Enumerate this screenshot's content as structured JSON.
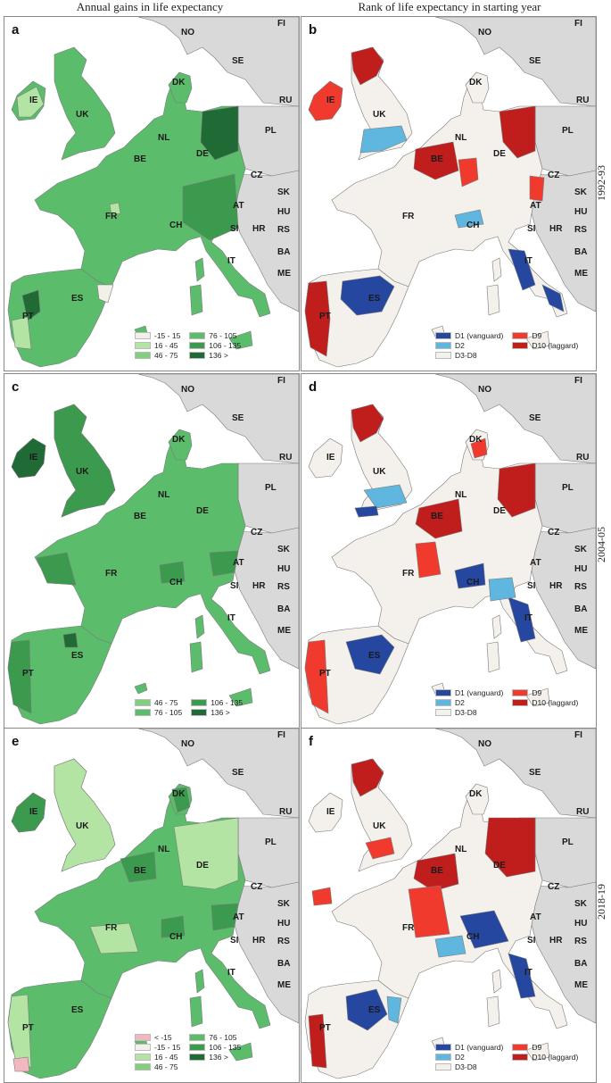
{
  "column_titles": {
    "left": "Annual gains in life expectancy",
    "right": "Rank of life expectancy in starting year"
  },
  "row_labels": [
    "1992-93",
    "2004-05",
    "2018-19"
  ],
  "panels": [
    {
      "letter": "a",
      "scheme": "gain",
      "legend": [
        {
          "label": "-15 - 15",
          "color": "#f2f0e8"
        },
        {
          "label": "16 - 45",
          "color": "#b4e4a4"
        },
        {
          "label": "46 - 75",
          "color": "#7fcf7c"
        },
        {
          "label": "76 - 105",
          "color": "#5bbd6b"
        },
        {
          "label": "106 - 135",
          "color": "#3c9a4f"
        },
        {
          "label": "136 >",
          "color": "#1f6a35"
        }
      ]
    },
    {
      "letter": "b",
      "scheme": "rank",
      "legend": [
        {
          "label": "D1 (vanguard)",
          "color": "#2547a0"
        },
        {
          "label": "D2",
          "color": "#5fb6df"
        },
        {
          "label": "D3-D8",
          "color": "#f4f1ec"
        },
        {
          "label": "D9",
          "color": "#f03a2e"
        },
        {
          "label": "D10 (laggard)",
          "color": "#c01d1d"
        }
      ]
    },
    {
      "letter": "c",
      "scheme": "gain",
      "legend": [
        {
          "label": "46 - 75",
          "color": "#7fcf7c"
        },
        {
          "label": "76 - 105",
          "color": "#5bbd6b"
        },
        {
          "label": "106 - 135",
          "color": "#3c9a4f"
        },
        {
          "label": "136 >",
          "color": "#1f6a35"
        }
      ]
    },
    {
      "letter": "d",
      "scheme": "rank",
      "legend": [
        {
          "label": "D1 (vanguard)",
          "color": "#2547a0"
        },
        {
          "label": "D2",
          "color": "#5fb6df"
        },
        {
          "label": "D3-D8",
          "color": "#f4f1ec"
        },
        {
          "label": "D9",
          "color": "#f03a2e"
        },
        {
          "label": "D10 (laggard)",
          "color": "#c01d1d"
        }
      ]
    },
    {
      "letter": "e",
      "scheme": "gain",
      "legend": [
        {
          "label": "< -15",
          "color": "#f2b8c0"
        },
        {
          "label": "-15 - 15",
          "color": "#f2f0e8"
        },
        {
          "label": "16 - 45",
          "color": "#b4e4a4"
        },
        {
          "label": "46 - 75",
          "color": "#7fcf7c"
        },
        {
          "label": "76 - 105",
          "color": "#5bbd6b"
        },
        {
          "label": "106 - 135",
          "color": "#3c9a4f"
        },
        {
          "label": "136 >",
          "color": "#1f6a35"
        }
      ]
    },
    {
      "letter": "f",
      "scheme": "rank",
      "legend": [
        {
          "label": "D1 (vanguard)",
          "color": "#2547a0"
        },
        {
          "label": "D2",
          "color": "#5fb6df"
        },
        {
          "label": "D3-D8",
          "color": "#f4f1ec"
        },
        {
          "label": "D9",
          "color": "#f03a2e"
        },
        {
          "label": "D10 (laggard)",
          "color": "#c01d1d"
        }
      ]
    }
  ],
  "country_labels": [
    "NO",
    "SE",
    "FI",
    "RU",
    "DK",
    "IE",
    "UK",
    "NL",
    "PL",
    "BE",
    "DE",
    "CZ",
    "SK",
    "FR",
    "AT",
    "HU",
    "CH",
    "SI",
    "HR",
    "RS",
    "BA",
    "IT",
    "ME",
    "ES",
    "PT"
  ],
  "colors": {
    "non_study_land": "#d9d9d9",
    "sea": "#ffffff",
    "border": "#7a7a7a"
  }
}
